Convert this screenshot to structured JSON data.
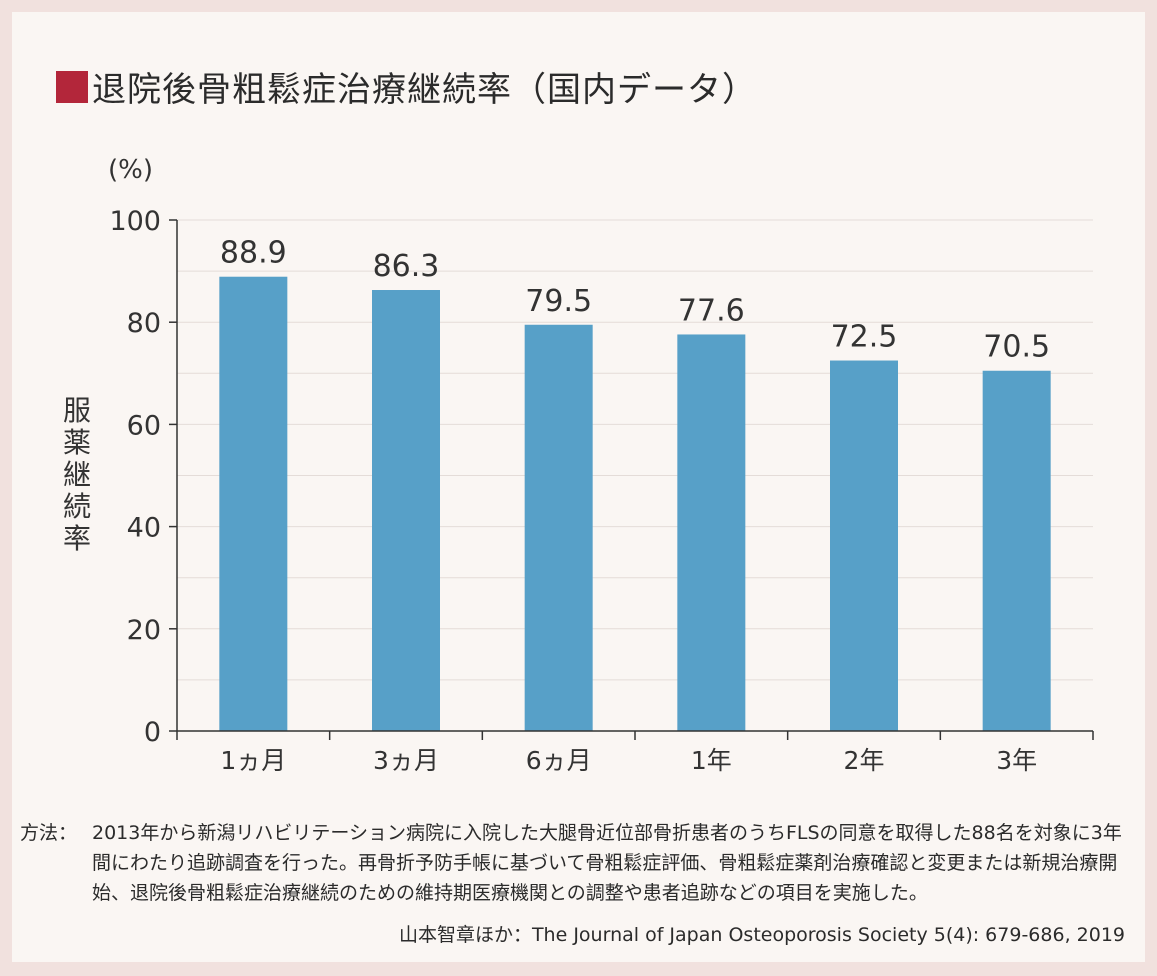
{
  "title": "退院後骨粗鬆症治療継続率（国内データ）",
  "colors": {
    "marker": "#b3263a",
    "bar": "#57a0c8",
    "background": "#faf6f3",
    "outer": "#f1e1de"
  },
  "chart_data": {
    "type": "bar",
    "title": "退院後骨粗鬆症治療継続率（国内データ）",
    "categories": [
      "1ヵ月",
      "3ヵ月",
      "6ヵ月",
      "1年",
      "2年",
      "3年"
    ],
    "values": [
      88.9,
      86.3,
      79.5,
      77.6,
      72.5,
      70.5
    ],
    "value_labels": [
      "88.9",
      "86.3",
      "79.5",
      "77.6",
      "72.5",
      "70.5"
    ],
    "xlabel": "",
    "ylabel": "服薬継続率",
    "yunit": "(%)",
    "ylim": [
      0,
      100
    ],
    "yticks": [
      0,
      20,
      40,
      60,
      80,
      100
    ],
    "grid": true
  },
  "footer": {
    "method_label": "方法：",
    "method_text": "2013年から新潟リハビリテーション病院に入院した大腿骨近位部骨折患者のうちFLSの同意を取得した88名を対象に3年間にわたり追跡調査を行った。再骨折予防手帳に基づいて骨粗鬆症評価、骨粗鬆症薬剤治療確認と変更または新規治療開始、退院後骨粗鬆症治療継続のための維持期医療機関との調整や患者追跡などの項目を実施した。",
    "citation": "山本智章ほか：The Journal of Japan Osteoporosis Society 5(4): 679-686, 2019"
  }
}
